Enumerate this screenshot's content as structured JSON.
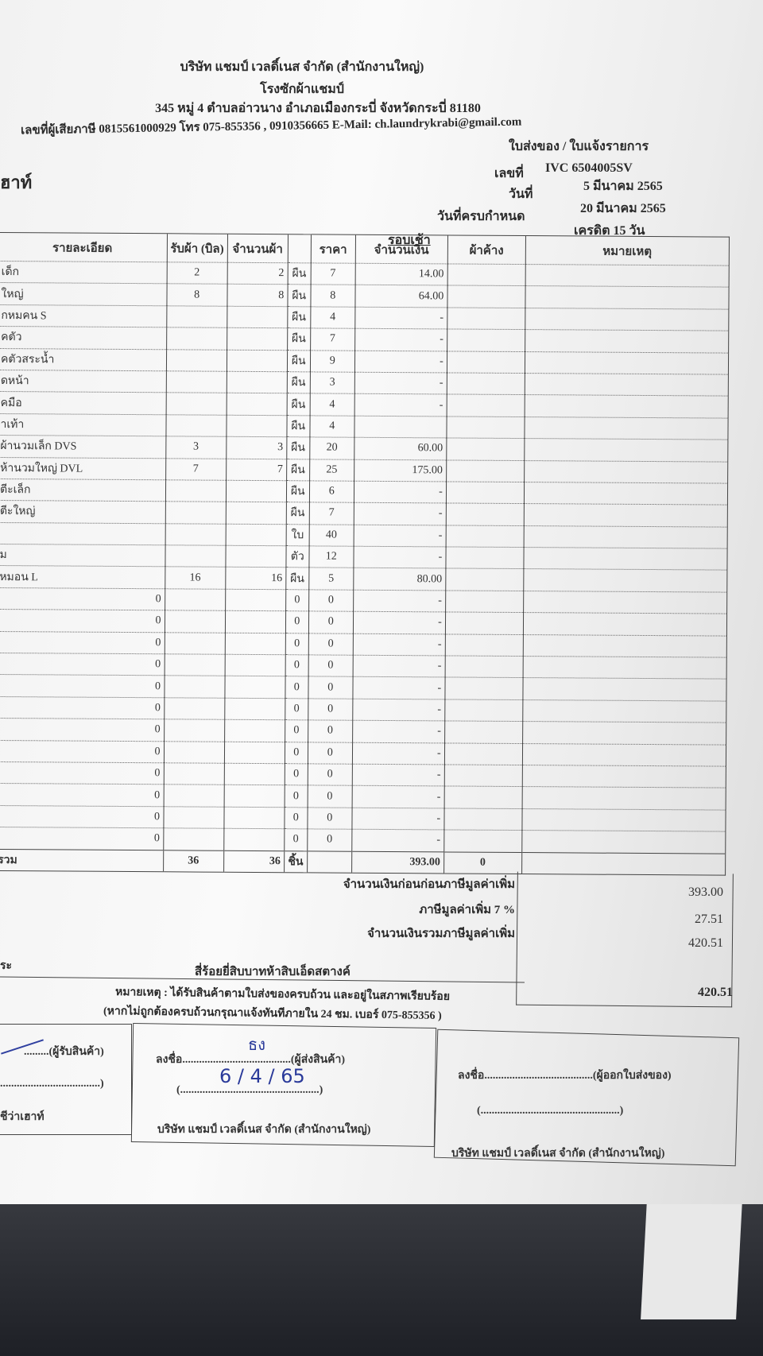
{
  "header": {
    "company": "บริษัท แชมป์ เวลดิ์เนส จำกัด (สำนักงานใหญ่)",
    "branch": "โรงซักผ้าแชมป์",
    "address": "345 หมู่ 4 ตำบลอ่าวนาง อำเภอเมืองกระบี่ จังหวัดกระบี่ 81180",
    "contact": "เลขที่ผู้เสียภาษี 0815561000929 โทร 075-855356 , 0910356665 E-Mail: ch.laundrykrabi@gmail.com",
    "doc_type": "ใบส่งของ / ใบแจ้งรายการ",
    "customer_partial": "ฮาท์",
    "no_label": "เลขที่",
    "no_value": "IVC 6504005SV",
    "date_label": "วันที่",
    "date_value": "5 มีนาคม 2565",
    "due_label": "วันที่ครบกำหนด",
    "due_value": "20 มีนาคม 2565",
    "credit": "เครดิต 15 วัน",
    "round": "รอบเช้า"
  },
  "table": {
    "columns": [
      "รายละเอียด",
      "รับผ้า (บิล)",
      "จำนวนผ้า",
      "",
      "ราคา",
      "จำนวนเงิน",
      "ผ้าค้าง",
      "หมายเหตุ"
    ],
    "rows": [
      [
        "เด็ก",
        "2",
        "2",
        "ผืน",
        "7",
        "14.00"
      ],
      [
        "ใหญ่",
        "8",
        "8",
        "ผืน",
        "8",
        "64.00"
      ],
      [
        "กหมคน S",
        "",
        "",
        "ผืน",
        "4",
        "-"
      ],
      [
        "คตัว",
        "",
        "",
        "ผืน",
        "7",
        "-"
      ],
      [
        "คตัวสระน้ำ",
        "",
        "",
        "ผืน",
        "9",
        "-"
      ],
      [
        "ดหน้า",
        "",
        "",
        "ผืน",
        "3",
        "-"
      ],
      [
        "คมือ",
        "",
        "",
        "ผืน",
        "4",
        "-"
      ],
      [
        "าเท้า",
        "",
        "",
        "ผืน",
        "4",
        ""
      ],
      [
        "ผ้านวมเล็ก DVS",
        "3",
        "3",
        "ผืน",
        "20",
        "60.00"
      ],
      [
        "ห้านวมใหญ่ DVL",
        "7",
        "7",
        "ผืน",
        "25",
        "175.00"
      ],
      [
        "ตีะเล็ก",
        "",
        "",
        "ผืน",
        "6",
        "-"
      ],
      [
        "ตีะใหญ่",
        "",
        "",
        "ผืน",
        "7",
        "-"
      ],
      [
        "",
        "",
        "",
        "ใบ",
        "40",
        "-"
      ],
      [
        "ม",
        "",
        "",
        "ตัว",
        "12",
        "-"
      ],
      [
        "หมอน L",
        "16",
        "16",
        "ผืน",
        "5",
        "80.00"
      ],
      [
        "0",
        "",
        "",
        "0",
        "0",
        "-"
      ],
      [
        "0",
        "",
        "",
        "0",
        "0",
        "-"
      ],
      [
        "0",
        "",
        "",
        "0",
        "0",
        "-"
      ],
      [
        "0",
        "",
        "",
        "0",
        "0",
        "-"
      ],
      [
        "0",
        "",
        "",
        "0",
        "0",
        "-"
      ],
      [
        "0",
        "",
        "",
        "0",
        "0",
        "-"
      ],
      [
        "0",
        "",
        "",
        "0",
        "0",
        "-"
      ],
      [
        "0",
        "",
        "",
        "0",
        "0",
        "-"
      ],
      [
        "0",
        "",
        "",
        "0",
        "0",
        "-"
      ],
      [
        "0",
        "",
        "",
        "0",
        "0",
        "-"
      ],
      [
        "0",
        "",
        "",
        "0",
        "0",
        "-"
      ],
      [
        "0",
        "",
        "",
        "0",
        "0",
        "-"
      ]
    ],
    "total": [
      "รวม",
      "36",
      "36",
      "ชิ้น",
      "",
      "393.00",
      "0"
    ]
  },
  "summary": {
    "before_vat_label": "จำนวนเงินก่อนก่อนภาษีมูลค่าเพิ่ม",
    "before_vat": "393.00",
    "vat_label": "ภาษีมูลค่าเพิ่ม 7 %",
    "vat": "27.51",
    "incl_vat_label": "จำนวนเงินรวมภาษีมูลค่าเพิ่ม",
    "incl_vat": "420.51",
    "words_prefix": "ระ",
    "words": "สี่ร้อยยี่สิบบาทห้าสิบเอ็ดสตางค์",
    "grand_total": "420.51"
  },
  "note": {
    "line1": "หมายเหตุ : ได้รับสินค้าตามใบส่งของครบถ้วน และอยู่ในสภาพเรียบร้อย",
    "line2": "(หากไม่ถูกต้องครบถ้วนกรุณาแจ้งทันทีภายใน 24 ชม. เบอร์ 075-855356 )"
  },
  "signatures": {
    "receiver_label": ".........(ผู้รับสินค้า)",
    "receiver_close": "....................................)",
    "receiver_company": "ชีว่าเฮาท์",
    "sender_sign": "ลงชื่อ.......................................(ผู้ส่งสินค้า)",
    "sender_hand": "ธง",
    "sender_date": "6 / 4 / 65",
    "sender_paren": "(..................................................)",
    "sender_company": "บริษัท แชมป์ เวลดิ์เนส จำกัด (สำนักงานใหญ่)",
    "issuer_sign": "ลงชื่อ.......................................(ผู้ออกใบส่งของ)",
    "issuer_paren": "(..................................................)",
    "issuer_company": "บริษัท แชมป์ เวลดิ์เนส จำกัด (สำนักงานใหญ่)"
  }
}
